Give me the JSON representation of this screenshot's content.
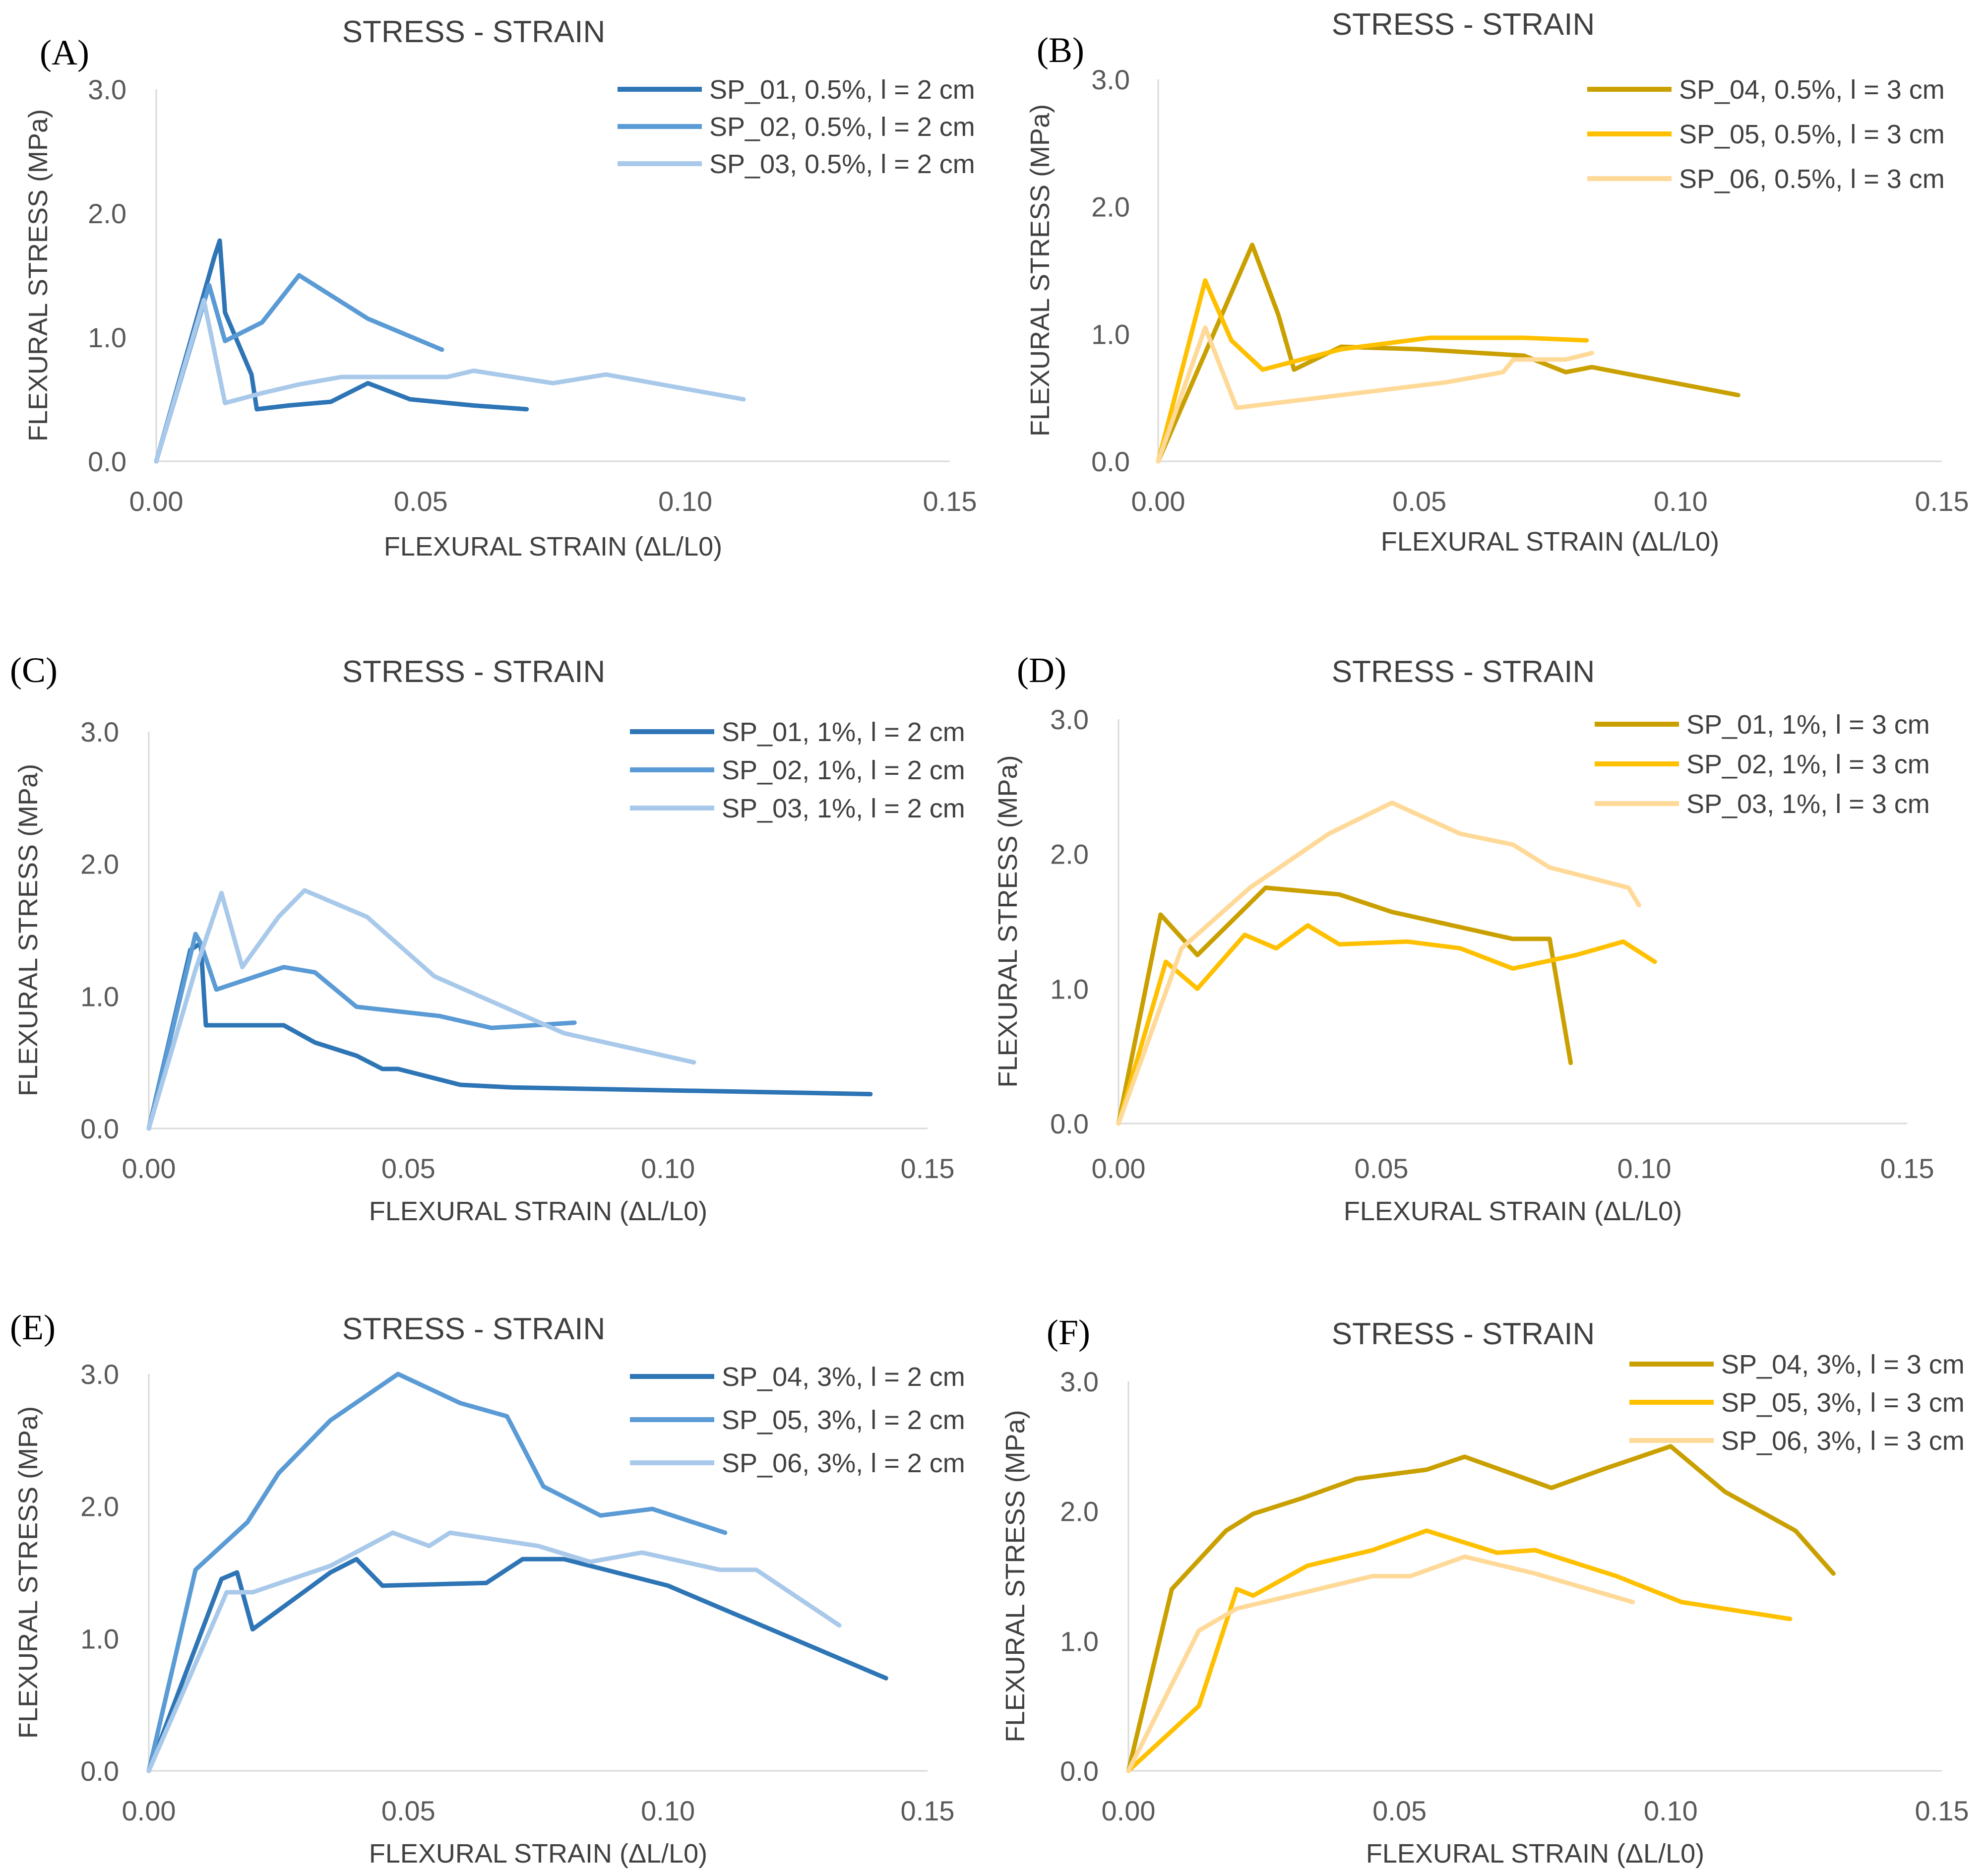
{
  "chart_data": [
    {
      "type": "line",
      "panel": "(A)",
      "title": "STRESS - STRAIN",
      "xlabel": "FLEXURAL STRAIN (ΔL/L0)",
      "ylabel": "FLEXURAL STRESS (MPa)",
      "xlim": [
        0,
        0.15
      ],
      "ylim": [
        0,
        3.0
      ],
      "xticks": [
        "0.00",
        "0.05",
        "0.10",
        "0.15"
      ],
      "yticks": [
        "0.0",
        "1.0",
        "2.0",
        "3.0"
      ],
      "legend_position": "top-right",
      "series": [
        {
          "name": "SP_01, 0.5%, l = 2 cm",
          "color": "#2e75b6",
          "x": [
            0,
            0.011,
            0.012,
            0.013,
            0.018,
            0.019,
            0.025,
            0.033,
            0.04,
            0.048,
            0.06,
            0.07
          ],
          "y": [
            0,
            1.65,
            1.78,
            1.2,
            0.7,
            0.42,
            0.45,
            0.48,
            0.63,
            0.5,
            0.45,
            0.42
          ]
        },
        {
          "name": "SP_02, 0.5%, l = 2 cm",
          "color": "#5b9bd5",
          "x": [
            0,
            0.01,
            0.013,
            0.02,
            0.027,
            0.04,
            0.054
          ],
          "y": [
            0,
            1.42,
            0.97,
            1.12,
            1.5,
            1.15,
            0.9
          ]
        },
        {
          "name": "SP_03, 0.5%, l = 2 cm",
          "color": "#a9c9ea",
          "x": [
            0,
            0.009,
            0.013,
            0.02,
            0.027,
            0.035,
            0.045,
            0.055,
            0.06,
            0.075,
            0.085,
            0.111
          ],
          "y": [
            0,
            1.3,
            0.47,
            0.55,
            0.62,
            0.68,
            0.68,
            0.68,
            0.73,
            0.63,
            0.7,
            0.5
          ]
        }
      ]
    },
    {
      "type": "line",
      "panel": "(B)",
      "title": "STRESS - STRAIN",
      "xlabel": "FLEXURAL STRAIN (ΔL/L0)",
      "ylabel": "FLEXURAL STRESS (MPa)",
      "xlim": [
        0,
        0.15
      ],
      "ylim": [
        0,
        3.0
      ],
      "xticks": [
        "0.00",
        "0.05",
        "0.10",
        "0.15"
      ],
      "yticks": [
        "0.0",
        "1.0",
        "2.0",
        "3.0"
      ],
      "legend_position": "top-right",
      "series": [
        {
          "name": "SP_04, 0.5%, l = 3 cm",
          "color": "#c9a000",
          "x": [
            0,
            0.018,
            0.023,
            0.026,
            0.035,
            0.05,
            0.07,
            0.078,
            0.083,
            0.111
          ],
          "y": [
            0,
            1.7,
            1.15,
            0.72,
            0.9,
            0.88,
            0.83,
            0.7,
            0.74,
            0.52
          ]
        },
        {
          "name": "SP_05, 0.5%, l = 3 cm",
          "color": "#ffc000",
          "x": [
            0,
            0.009,
            0.014,
            0.02,
            0.035,
            0.052,
            0.07,
            0.082
          ],
          "y": [
            0,
            1.42,
            0.95,
            0.72,
            0.88,
            0.97,
            0.97,
            0.95
          ]
        },
        {
          "name": "SP_06, 0.5%, l = 3 cm",
          "color": "#ffd998",
          "x": [
            0,
            0.009,
            0.015,
            0.035,
            0.055,
            0.066,
            0.068,
            0.078,
            0.083
          ],
          "y": [
            0,
            1.05,
            0.42,
            0.52,
            0.62,
            0.7,
            0.8,
            0.8,
            0.85
          ]
        }
      ]
    },
    {
      "type": "line",
      "panel": "(C)",
      "title": "STRESS - STRAIN",
      "xlabel": "FLEXURAL STRAIN (ΔL/L0)",
      "ylabel": "FLEXURAL STRESS (MPa)",
      "xlim": [
        0,
        0.15
      ],
      "ylim": [
        0,
        3.0
      ],
      "xticks": [
        "0.00",
        "0.05",
        "0.10",
        "0.15"
      ],
      "yticks": [
        "0.0",
        "1.0",
        "2.0",
        "3.0"
      ],
      "legend_position": "top-right",
      "series": [
        {
          "name": "SP_01, 1%, l = 2 cm",
          "color": "#2e75b6",
          "x": [
            0,
            0.008,
            0.01,
            0.011,
            0.026,
            0.032,
            0.04,
            0.045,
            0.048,
            0.06,
            0.07,
            0.139
          ],
          "y": [
            0,
            1.35,
            1.4,
            0.78,
            0.78,
            0.65,
            0.55,
            0.45,
            0.45,
            0.33,
            0.31,
            0.26
          ]
        },
        {
          "name": "SP_02, 1%, l = 2 cm",
          "color": "#5b9bd5",
          "x": [
            0,
            0.009,
            0.01,
            0.013,
            0.026,
            0.032,
            0.04,
            0.056,
            0.066,
            0.082
          ],
          "y": [
            0,
            1.47,
            1.4,
            1.05,
            1.22,
            1.18,
            0.92,
            0.85,
            0.76,
            0.8
          ]
        },
        {
          "name": "SP_03, 1%, l = 2 cm",
          "color": "#a9c9ea",
          "x": [
            0,
            0.009,
            0.014,
            0.018,
            0.025,
            0.03,
            0.042,
            0.055,
            0.08,
            0.105
          ],
          "y": [
            0,
            1.2,
            1.78,
            1.22,
            1.6,
            1.8,
            1.6,
            1.15,
            0.72,
            0.5
          ]
        }
      ]
    },
    {
      "type": "line",
      "panel": "(D)",
      "title": "STRESS - STRAIN",
      "xlabel": "FLEXURAL STRAIN (ΔL/L0)",
      "ylabel": "FLEXURAL STRESS (MPa)",
      "xlim": [
        0,
        0.15
      ],
      "ylim": [
        0,
        3.0
      ],
      "xticks": [
        "0.00",
        "0.05",
        "0.10",
        "0.15"
      ],
      "yticks": [
        "0.0",
        "1.0",
        "2.0",
        "3.0"
      ],
      "legend_position": "top-right",
      "series": [
        {
          "name": "SP_01, 1%, l = 3 cm",
          "color": "#c9a000",
          "x": [
            0,
            0.008,
            0.015,
            0.028,
            0.042,
            0.052,
            0.075,
            0.082,
            0.086
          ],
          "y": [
            0,
            1.55,
            1.25,
            1.75,
            1.7,
            1.57,
            1.37,
            1.37,
            0.45
          ]
        },
        {
          "name": "SP_02, 1%, l = 3 cm",
          "color": "#ffc000",
          "x": [
            0,
            0.009,
            0.015,
            0.024,
            0.03,
            0.036,
            0.042,
            0.055,
            0.065,
            0.075,
            0.087,
            0.096,
            0.102
          ],
          "y": [
            0,
            1.2,
            1.0,
            1.4,
            1.3,
            1.47,
            1.33,
            1.35,
            1.3,
            1.15,
            1.25,
            1.35,
            1.2
          ]
        },
        {
          "name": "SP_03, 1%, l = 3 cm",
          "color": "#ffd998",
          "x": [
            0,
            0.012,
            0.025,
            0.04,
            0.052,
            0.065,
            0.075,
            0.082,
            0.097,
            0.099
          ],
          "y": [
            0,
            1.3,
            1.75,
            2.15,
            2.38,
            2.15,
            2.07,
            1.9,
            1.75,
            1.62
          ]
        }
      ]
    },
    {
      "type": "line",
      "panel": "(E)",
      "title": "STRESS - STRAIN",
      "xlabel": "FLEXURAL STRAIN (ΔL/L0)",
      "ylabel": "FLEXURAL STRESS (MPa)",
      "xlim": [
        0,
        0.15
      ],
      "ylim": [
        0,
        3.0
      ],
      "xticks": [
        "0.00",
        "0.05",
        "0.10",
        "0.15"
      ],
      "yticks": [
        "0.0",
        "1.0",
        "2.0",
        "3.0"
      ],
      "legend_position": "top-right",
      "series": [
        {
          "name": "SP_04, 3%, l = 2 cm",
          "color": "#2e75b6",
          "x": [
            0,
            0.014,
            0.017,
            0.02,
            0.035,
            0.04,
            0.045,
            0.065,
            0.072,
            0.08,
            0.1,
            0.142
          ],
          "y": [
            0,
            1.45,
            1.5,
            1.07,
            1.5,
            1.6,
            1.4,
            1.42,
            1.6,
            1.6,
            1.4,
            0.7
          ]
        },
        {
          "name": "SP_05, 3%, l = 2 cm",
          "color": "#5b9bd5",
          "x": [
            0,
            0.009,
            0.019,
            0.025,
            0.035,
            0.048,
            0.06,
            0.069,
            0.076,
            0.087,
            0.097,
            0.111
          ],
          "y": [
            0,
            1.52,
            1.88,
            2.25,
            2.65,
            3.0,
            2.78,
            2.68,
            2.15,
            1.93,
            1.98,
            1.8
          ]
        },
        {
          "name": "SP_06, 3%, l = 2 cm",
          "color": "#a9c9ea",
          "x": [
            0,
            0.015,
            0.02,
            0.035,
            0.047,
            0.054,
            0.058,
            0.075,
            0.085,
            0.095,
            0.11,
            0.117,
            0.133
          ],
          "y": [
            0,
            1.35,
            1.35,
            1.55,
            1.8,
            1.7,
            1.8,
            1.7,
            1.58,
            1.65,
            1.52,
            1.52,
            1.1
          ]
        }
      ]
    },
    {
      "type": "line",
      "panel": "(F)",
      "title": "STRESS - STRAIN",
      "xlabel": "FLEXURAL STRAIN (ΔL/L0)",
      "ylabel": "FLEXURAL STRESS (MPa)",
      "xlim": [
        0,
        0.15
      ],
      "ylim": [
        0,
        3.0
      ],
      "xticks": [
        "0.00",
        "0.05",
        "0.10",
        "0.15"
      ],
      "yticks": [
        "0.0",
        "1.0",
        "2.0",
        "3.0"
      ],
      "legend_position": "top-right",
      "series": [
        {
          "name": "SP_04, 3%, l = 3 cm",
          "color": "#c9a000",
          "x": [
            0,
            0.008,
            0.018,
            0.023,
            0.032,
            0.042,
            0.055,
            0.062,
            0.078,
            0.088,
            0.1,
            0.11,
            0.123,
            0.13
          ],
          "y": [
            0,
            1.4,
            1.85,
            1.98,
            2.1,
            2.25,
            2.32,
            2.42,
            2.18,
            2.33,
            2.5,
            2.15,
            1.85,
            1.52
          ]
        },
        {
          "name": "SP_05, 3%, l = 3 cm",
          "color": "#ffc000",
          "x": [
            0,
            0.013,
            0.02,
            0.023,
            0.033,
            0.045,
            0.055,
            0.068,
            0.075,
            0.09,
            0.102,
            0.122
          ],
          "y": [
            0,
            0.5,
            1.4,
            1.35,
            1.58,
            1.7,
            1.85,
            1.68,
            1.7,
            1.5,
            1.3,
            1.17
          ]
        },
        {
          "name": "SP_06, 3%, l = 3 cm",
          "color": "#ffd998",
          "x": [
            0,
            0.013,
            0.02,
            0.035,
            0.045,
            0.052,
            0.062,
            0.075,
            0.093
          ],
          "y": [
            0,
            1.08,
            1.25,
            1.4,
            1.5,
            1.5,
            1.65,
            1.52,
            1.3
          ]
        }
      ]
    }
  ]
}
